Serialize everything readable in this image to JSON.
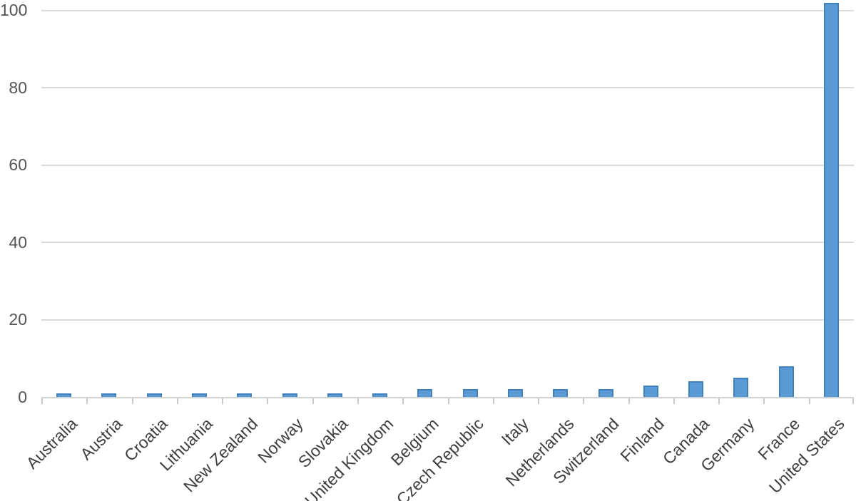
{
  "chart_data": {
    "type": "bar",
    "title": "",
    "xlabel": "",
    "ylabel": "",
    "categories": [
      "Australia",
      "Austria",
      "Croatia",
      "Lithuania",
      "New Zealand",
      "Norway",
      "Slovakia",
      "United Kingdom",
      "Belgium",
      "Czech Republic",
      "Italy",
      "Netherlands",
      "Switzerland",
      "Finland",
      "Canada",
      "Germany",
      "France",
      "United States"
    ],
    "values": [
      1,
      1,
      1,
      1,
      1,
      1,
      1,
      1,
      2,
      2,
      2,
      2,
      2,
      3,
      4,
      5,
      8,
      102
    ],
    "ylim": [
      0,
      100
    ],
    "yticks": [
      0,
      20,
      40,
      60,
      80,
      100
    ],
    "grid": true,
    "legend": false,
    "colors": {
      "bar_fill": "#5b9bd5",
      "bar_border": "#4080be",
      "gridline": "#d9d9d9",
      "axis_line": "#d2d2d2",
      "tick_mark": "#c9c9c9",
      "y_tick_label": "#555555",
      "x_tick_label": "#3f3f3f",
      "background": "#ffffff"
    }
  }
}
